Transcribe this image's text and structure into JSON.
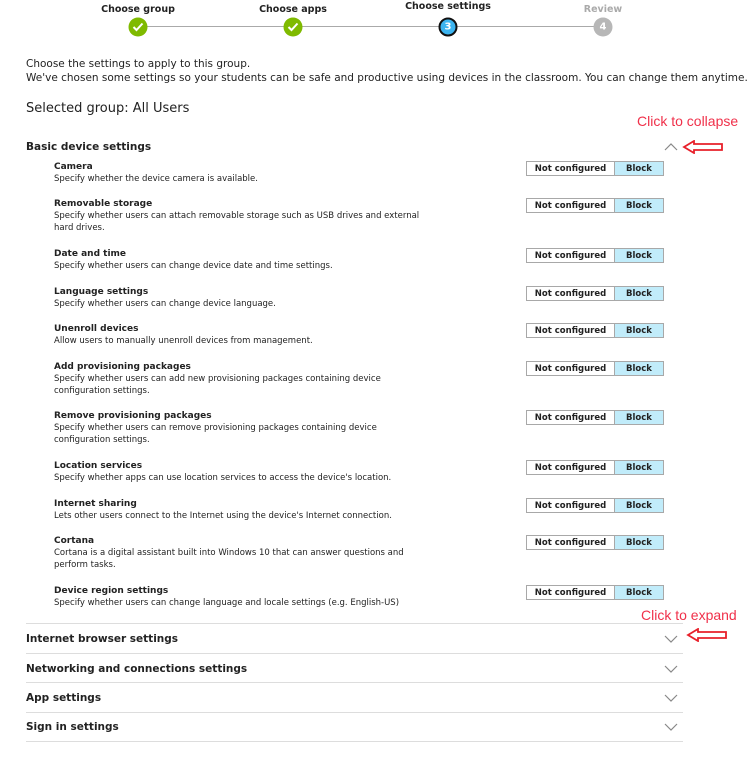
{
  "stepper": {
    "steps": [
      {
        "label": "Choose group",
        "state": "done",
        "icon": "check-icon"
      },
      {
        "label": "Choose apps",
        "state": "done",
        "icon": "check-icon"
      },
      {
        "label": "Choose settings",
        "state": "current",
        "number": "3"
      },
      {
        "label": "Review",
        "state": "future",
        "number": "4"
      }
    ],
    "colors": {
      "done": "#7fba00",
      "current": "#3cb4f0",
      "future": "#b7b7b7"
    }
  },
  "intro": {
    "line1": "Choose the settings to apply to this group.",
    "line2": "We've chosen some settings so your students can be safe and productive using devices in the classroom. You can change them anytime."
  },
  "selected_group": "Selected group: All Users",
  "basic_section": {
    "title": "Basic device settings",
    "expanded": true,
    "settings": [
      {
        "title": "Camera",
        "desc": "Specify whether the device camera is available.",
        "value": "Block"
      },
      {
        "title": "Removable storage",
        "desc": "Specify whether users can attach removable storage such as USB drives and external hard drives.",
        "value": "Block"
      },
      {
        "title": "Date and time",
        "desc": "Specify whether users can change device date and time settings.",
        "value": "Block"
      },
      {
        "title": "Language settings",
        "desc": "Specify whether users can change device language.",
        "value": "Block"
      },
      {
        "title": "Unenroll devices",
        "desc": "Allow users to manually unenroll devices from management.",
        "value": "Block"
      },
      {
        "title": "Add provisioning packages",
        "desc": "Specify whether users can add new provisioning packages containing device configuration settings.",
        "value": "Block"
      },
      {
        "title": "Remove provisioning packages",
        "desc": "Specify whether users can remove provisioning packages containing device configuration settings.",
        "value": "Block"
      },
      {
        "title": "Location services",
        "desc": "Specify whether apps can use location services to access the device's location.",
        "value": "Block"
      },
      {
        "title": "Internet sharing",
        "desc": "Lets other users connect to the Internet using the device's Internet connection.",
        "value": "Block"
      },
      {
        "title": "Cortana",
        "desc": "Cortana is a digital assistant built into Windows 10 that can answer questions and perform tasks.",
        "value": "Block"
      },
      {
        "title": "Device region settings",
        "desc": "Specify whether users can change language and locale settings (e.g. English-US)",
        "value": "Block"
      }
    ]
  },
  "toggle": {
    "option_off": "Not configured",
    "option_on": "Block",
    "selected_color": "#c1ecfa"
  },
  "collapsed_sections": [
    {
      "title": "Internet browser settings"
    },
    {
      "title": "Networking and connections settings"
    },
    {
      "title": "App settings"
    },
    {
      "title": "Sign in settings"
    }
  ],
  "annotations": {
    "collapse": "Click to collapse",
    "expand": "Click to expand",
    "color": "#f0304a"
  }
}
